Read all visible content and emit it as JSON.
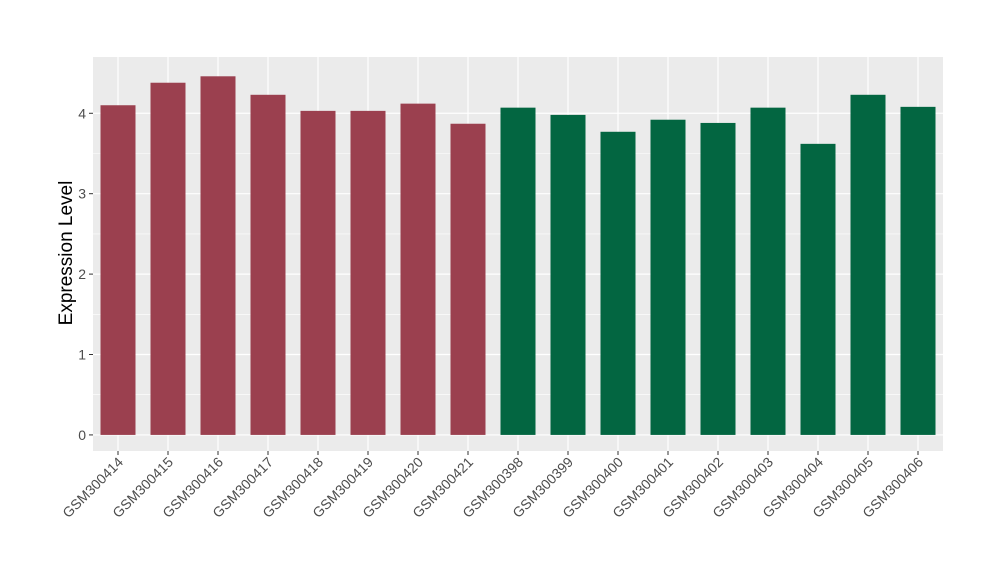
{
  "chart_data": {
    "type": "bar",
    "title": "",
    "xlabel": "",
    "ylabel": "Expression Level",
    "ylim": [
      -0.2,
      4.7
    ],
    "yticks": [
      0,
      1,
      2,
      3,
      4
    ],
    "grid": true,
    "legend": "none",
    "categories": [
      "GSM300414",
      "GSM300415",
      "GSM300416",
      "GSM300417",
      "GSM300418",
      "GSM300419",
      "GSM300420",
      "GSM300421",
      "GSM300398",
      "GSM300399",
      "GSM300400",
      "GSM300401",
      "GSM300402",
      "GSM300403",
      "GSM300404",
      "GSM300405",
      "GSM300406"
    ],
    "values": [
      4.1,
      4.38,
      4.46,
      4.23,
      4.03,
      4.03,
      4.12,
      3.87,
      4.07,
      3.98,
      3.77,
      3.92,
      3.88,
      4.07,
      3.62,
      4.23,
      4.08
    ],
    "groups": [
      0,
      0,
      0,
      0,
      0,
      0,
      0,
      0,
      1,
      1,
      1,
      1,
      1,
      1,
      1,
      1,
      1
    ],
    "group_colors": [
      "#9b404f",
      "#036641"
    ],
    "panel_background": "#ebebeb",
    "gridline_color": "#ffffff"
  }
}
